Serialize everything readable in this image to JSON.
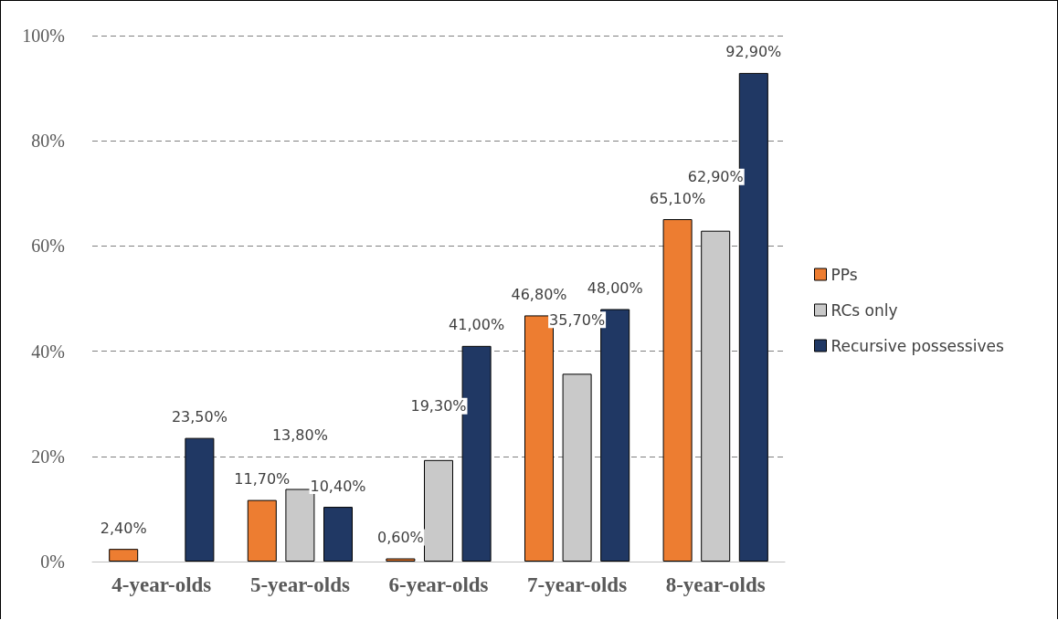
{
  "chart_data": {
    "type": "bar",
    "categories": [
      "4-year-olds",
      "5-year-olds",
      "6-year-olds",
      "7-year-olds",
      "8-year-olds"
    ],
    "series": [
      {
        "name": "PPs",
        "color": "#ed7d31",
        "values": [
          2.4,
          11.7,
          0.6,
          46.8,
          65.1
        ],
        "value_labels": [
          "2,40%",
          "11,70%",
          "0,60%",
          "46,80%",
          "65,10%"
        ]
      },
      {
        "name": "RCs only",
        "color": "#c9c9c9",
        "values": [
          null,
          13.8,
          19.3,
          35.7,
          62.9
        ],
        "value_labels": [
          null,
          "13,80%",
          "19,30%",
          "35,70%",
          "62,90%"
        ]
      },
      {
        "name": "Recursive possessives",
        "color": "#203864",
        "values": [
          23.5,
          10.4,
          41.0,
          48.0,
          92.9
        ],
        "value_labels": [
          "23,50%",
          "10,40%",
          "41,00%",
          "48,00%",
          "92,90%"
        ]
      }
    ],
    "ylim": [
      0,
      100
    ],
    "yticks": [
      {
        "value": 0,
        "label": "0%"
      },
      {
        "value": 20,
        "label": "20%"
      },
      {
        "value": 40,
        "label": "40%"
      },
      {
        "value": 60,
        "label": "60%"
      },
      {
        "value": 80,
        "label": "80%"
      },
      {
        "value": 100,
        "label": "100%"
      }
    ],
    "grid": "y",
    "legend": "right"
  }
}
